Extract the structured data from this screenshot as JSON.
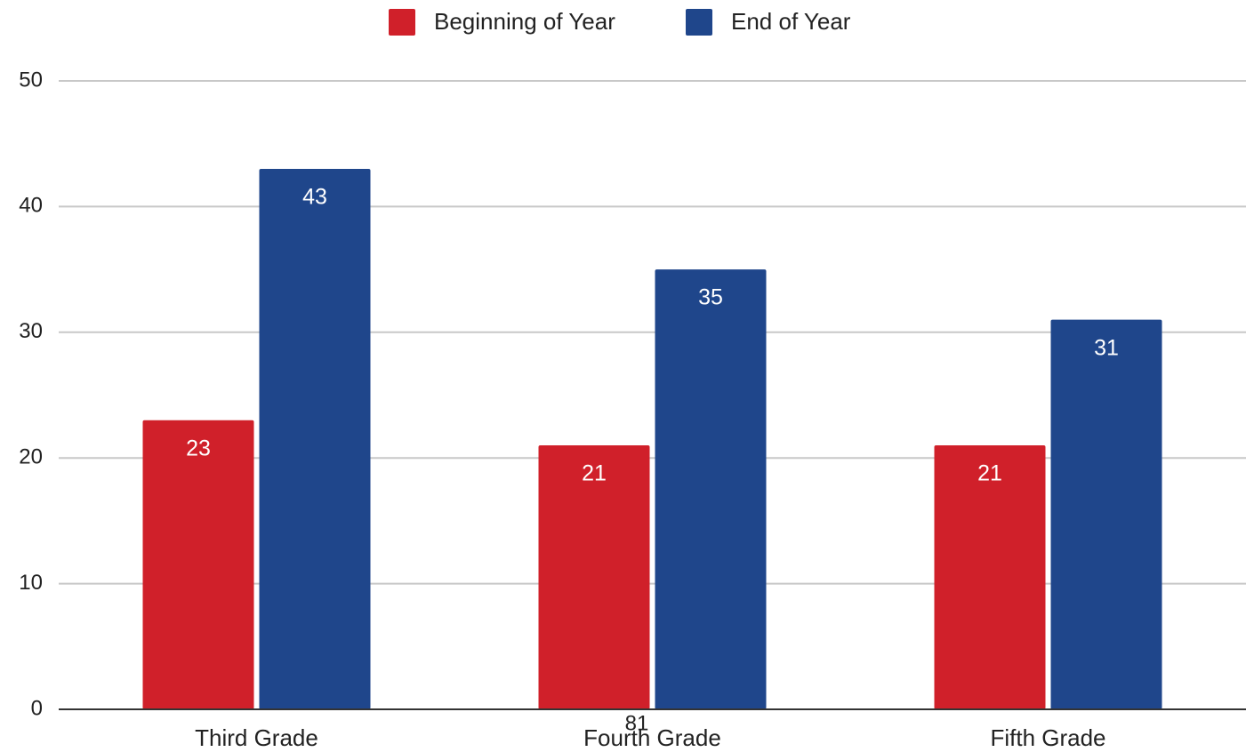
{
  "chart_data": {
    "type": "bar",
    "categories": [
      "Third Grade",
      "Fourth Grade",
      "Fifth Grade"
    ],
    "series": [
      {
        "name": "Beginning of Year",
        "color": "#d0202a",
        "values": [
          23,
          21,
          21
        ]
      },
      {
        "name": "End of Year",
        "color": "#1f468b",
        "values": [
          43,
          35,
          31
        ]
      }
    ],
    "ylim": [
      0,
      50
    ],
    "yticks": [
      0,
      10,
      20,
      30,
      40,
      50
    ],
    "grid": true,
    "legend": "top",
    "annotation": "81"
  }
}
